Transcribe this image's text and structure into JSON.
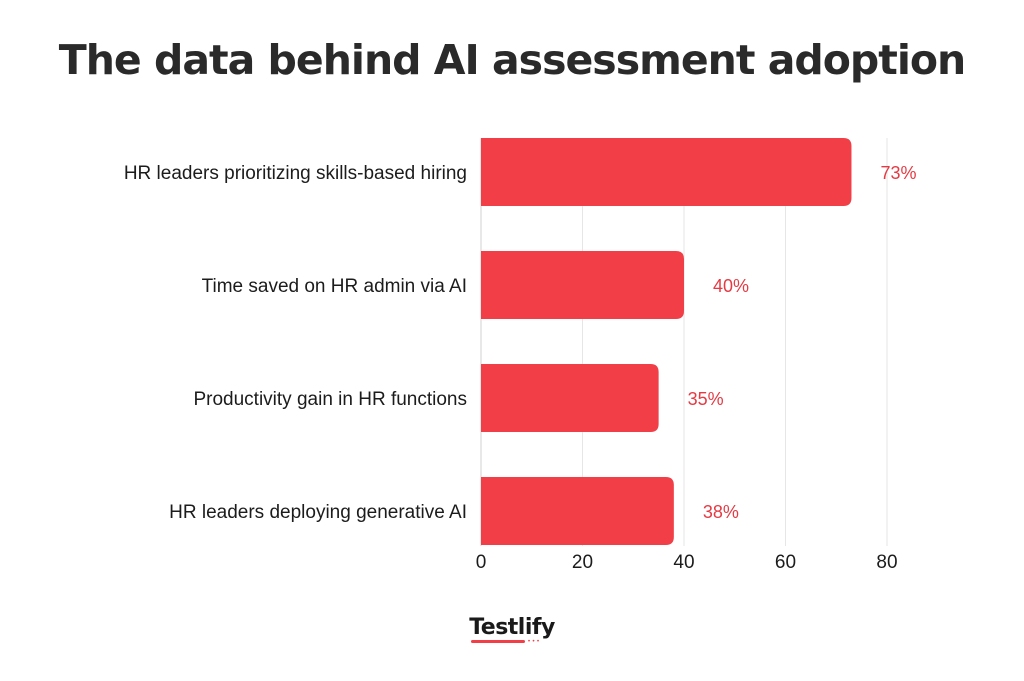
{
  "title": "The data behind AI assessment adoption",
  "brand": "Testlify",
  "colors": {
    "bar": "#f23f47",
    "value_label": "#e53a43",
    "grid": "#e6e6e6",
    "axis": "#d0d0d0",
    "title": "#2a2a2a",
    "text": "#1c1c1c"
  },
  "chart_data": {
    "type": "bar",
    "orientation": "horizontal",
    "categories": [
      "HR leaders prioritizing skills-based hiring",
      "Time saved on HR admin via AI",
      "Productivity gain in HR functions",
      "HR leaders deploying generative AI"
    ],
    "values": [
      73,
      40,
      35,
      38
    ],
    "value_labels": [
      "73%",
      "40%",
      "35%",
      "38%"
    ],
    "title": "The data behind AI assessment adoption",
    "xlabel": "",
    "ylabel": "",
    "xlim": [
      0,
      80
    ],
    "xticks": [
      0,
      20,
      40,
      60,
      80
    ],
    "tick_labels": [
      "0",
      "20",
      "40",
      "60",
      "80"
    ],
    "grid": "vertical",
    "legend": "none"
  }
}
